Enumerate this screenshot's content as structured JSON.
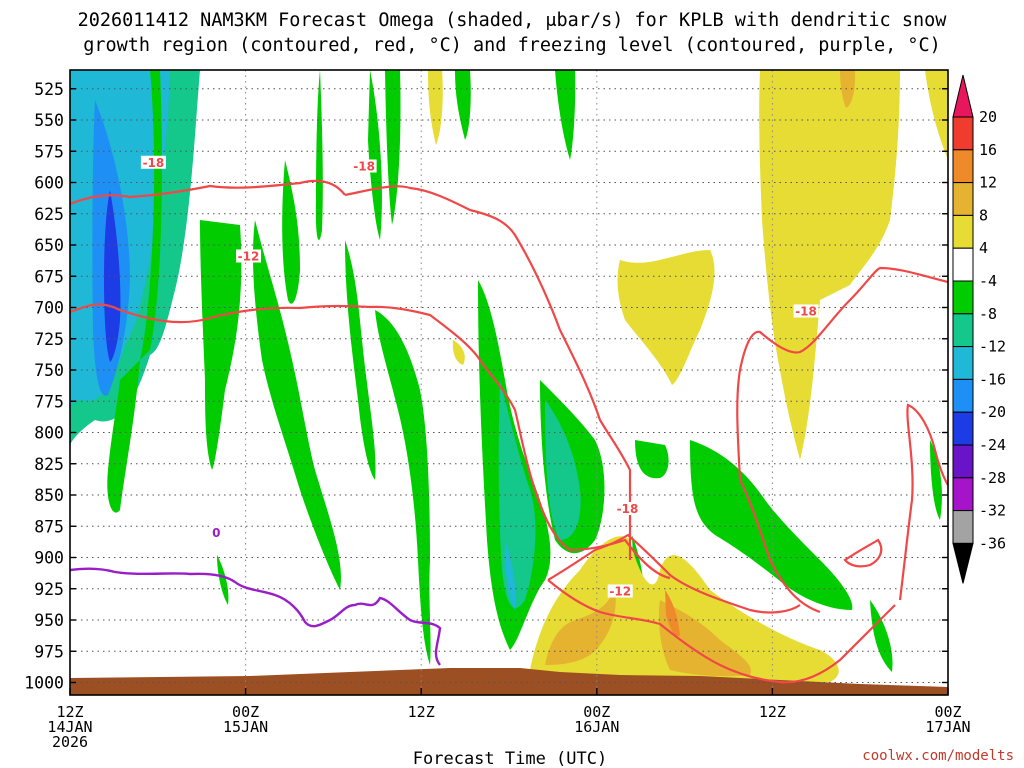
{
  "chart_data": {
    "type": "heatmap",
    "title_line1": "2026011412 NAM3KM Forecast Omega (shaded, μbar/s) for KPLB with dendritic snow",
    "title_line2": "growth region (contoured, red, °C) and freezing level (contoured, purple, °C)",
    "xlabel": "Forecast Time (UTC)",
    "ylabel": "",
    "x_range_hours": [
      0,
      60
    ],
    "y_range_hPa": [
      510,
      1010
    ],
    "y_ticks": [
      525,
      550,
      575,
      600,
      625,
      650,
      675,
      700,
      725,
      750,
      775,
      800,
      825,
      850,
      875,
      900,
      925,
      950,
      975,
      1000
    ],
    "x_ticks": [
      {
        "hour": 0,
        "line1": "12Z",
        "line2": "14JAN",
        "line3": "2026"
      },
      {
        "hour": 12,
        "line1": "00Z",
        "line2": "15JAN",
        "line3": ""
      },
      {
        "hour": 24,
        "line1": "12Z",
        "line2": "",
        "line3": ""
      },
      {
        "hour": 36,
        "line1": "00Z",
        "line2": "16JAN",
        "line3": ""
      },
      {
        "hour": 48,
        "line1": "12Z",
        "line2": "",
        "line3": ""
      },
      {
        "hour": 60,
        "line1": "00Z",
        "line2": "17JAN",
        "line3": ""
      }
    ],
    "grid": true,
    "colorbar": {
      "labels": [
        "20",
        "16",
        "12",
        "8",
        "4",
        "-4",
        "-8",
        "-12",
        "-16",
        "-20",
        "-24",
        "-28",
        "-32",
        "-36"
      ],
      "colors": [
        "#e8175d",
        "#f03c2e",
        "#ef8a2a",
        "#e5b330",
        "#e7dc33",
        "#ffffff",
        "#00cc00",
        "#14c78a",
        "#1fb8d6",
        "#1e90f5",
        "#1e3ce6",
        "#6a14c8",
        "#a514c8",
        "#a3a3a3",
        "#000000"
      ]
    },
    "contour_labels": [
      {
        "text": "-18",
        "hour": 5.7,
        "p": 585,
        "color": "#f04848"
      },
      {
        "text": "-18",
        "hour": 20.1,
        "p": 588,
        "color": "#f04848"
      },
      {
        "text": "-12",
        "hour": 12.2,
        "p": 660,
        "color": "#f04848"
      },
      {
        "text": "-18",
        "hour": 50.3,
        "p": 704,
        "color": "#f04848"
      },
      {
        "text": "-18",
        "hour": 38.1,
        "p": 862,
        "color": "#f04848"
      },
      {
        "text": "-12",
        "hour": 37.6,
        "p": 928,
        "color": "#f04848"
      },
      {
        "text": "0",
        "hour": 10.0,
        "p": 881,
        "color": "#9a1ec8"
      }
    ],
    "credit": "coolwx.com/modelts"
  }
}
